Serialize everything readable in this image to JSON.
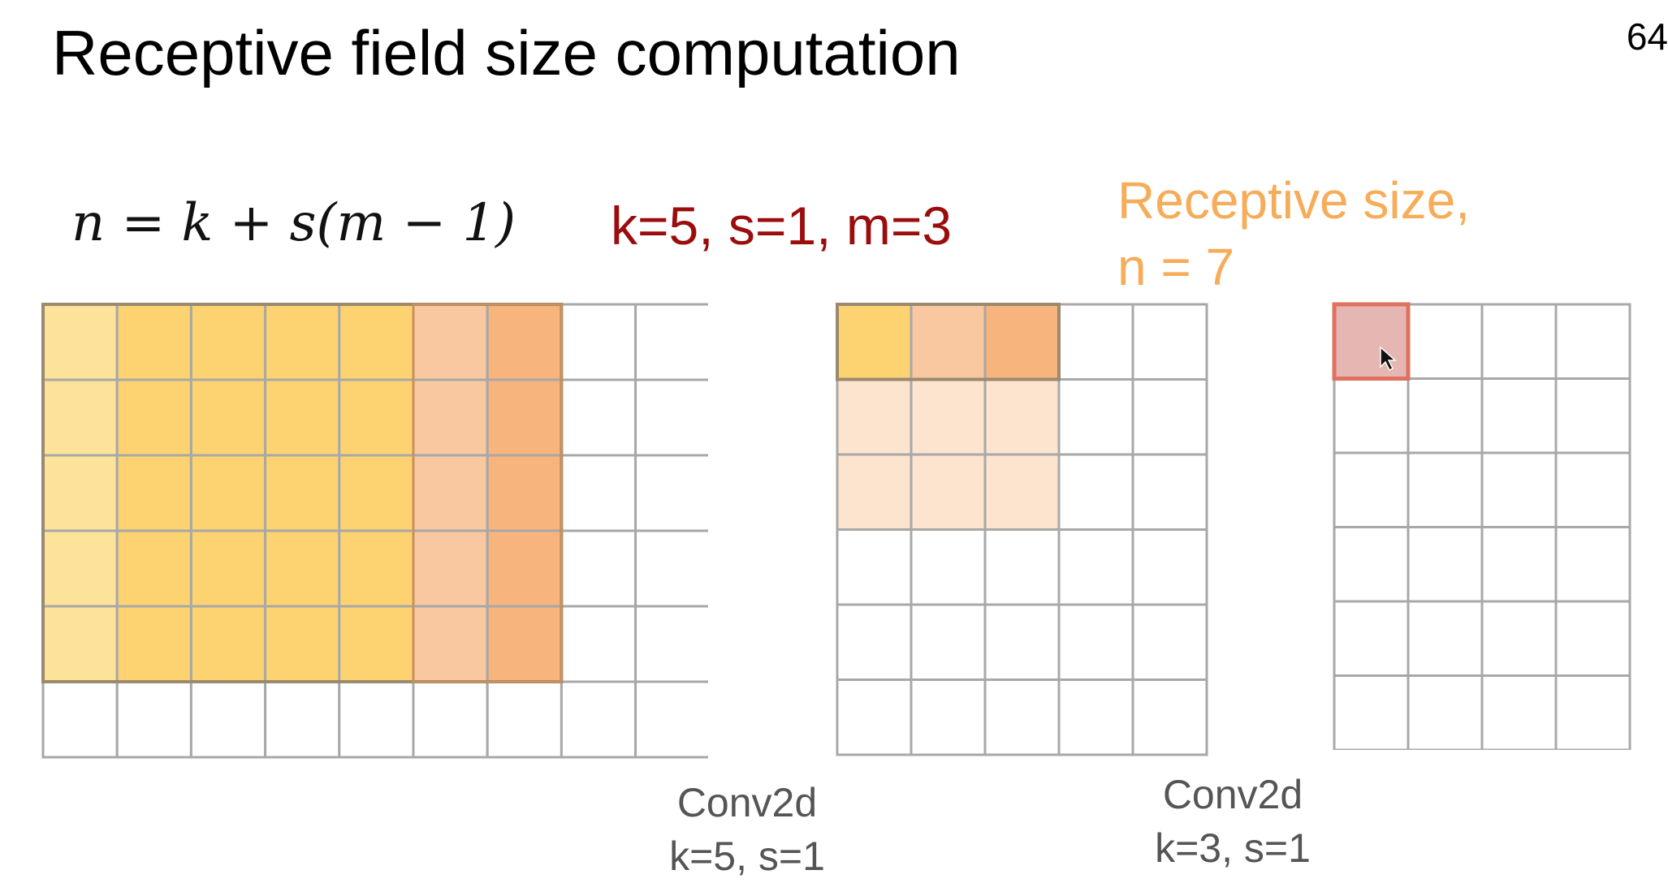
{
  "slide": {
    "title": "Receptive field size computation",
    "page_number": "64",
    "formula": "n = k + s(m − 1)",
    "params": "k=5, s=1, m=3",
    "receptive_label_line1": "Receptive size,",
    "receptive_label_line2": "n = 7"
  },
  "grids": {
    "input": {
      "rows": 6,
      "cols": 9,
      "receptive_rows": 5,
      "receptive_cols": 7,
      "caption_line1": "Conv2d",
      "caption_line2": "k=5, s=1"
    },
    "middle": {
      "rows": 6,
      "cols": 5,
      "highlight_rows": 3,
      "highlight_cols": 3,
      "caption_line1": "Conv2d",
      "caption_line2": "k=3, s=1"
    },
    "output": {
      "rows": 6,
      "cols": 4,
      "highlight_cell": [
        0,
        0
      ]
    }
  },
  "colors": {
    "grid_line": "#a8a8a8",
    "yellow_light": "#fde39a",
    "yellow": "#fdd371",
    "peach": "#f9c8a0",
    "orange": "#f7b47c",
    "border_dark": "#9b8a6e",
    "pale_orange": "#fde4cf",
    "output_fill": "#e6b7b2",
    "output_border": "#e07060",
    "params_red": "#9b0d0d",
    "receptive_orange": "#f6ac58"
  },
  "cursor_icon": "mouse-pointer-icon"
}
